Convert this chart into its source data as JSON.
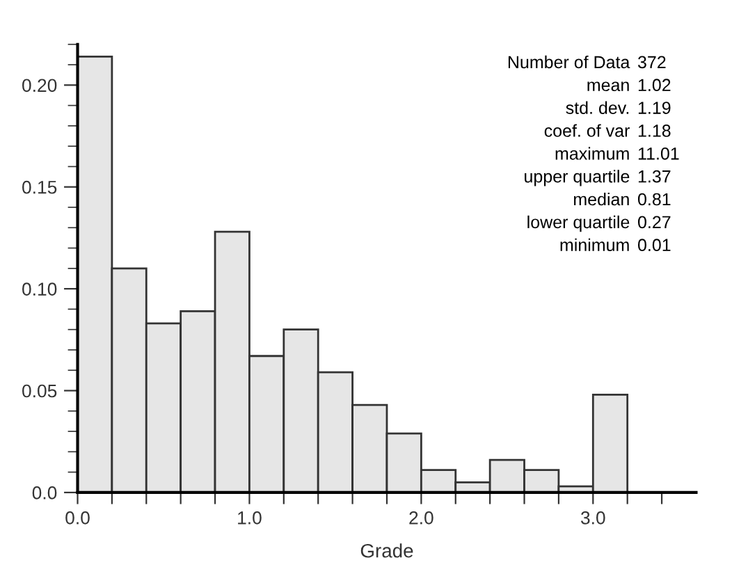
{
  "chart_data": {
    "type": "histogram",
    "xlabel": "Grade",
    "bins": [
      0.0,
      0.2,
      0.4,
      0.6,
      0.8,
      1.0,
      1.2,
      1.4,
      1.6,
      1.8,
      2.0,
      2.2,
      2.4,
      2.6,
      2.8,
      3.0,
      3.2
    ],
    "values": [
      0.214,
      0.11,
      0.083,
      0.089,
      0.128,
      0.067,
      0.08,
      0.059,
      0.043,
      0.029,
      0.011,
      0.005,
      0.016,
      0.011,
      0.003,
      0.048
    ],
    "color": "#e6e6e6",
    "xlim": [
      0,
      3.6
    ],
    "xticks": [
      {
        "value": 0.0,
        "label": "0.0"
      },
      {
        "value": 0.2,
        "label": null
      },
      {
        "value": 0.4,
        "label": null
      },
      {
        "value": 0.6,
        "label": null
      },
      {
        "value": 0.8,
        "label": null
      },
      {
        "value": 1.0,
        "label": "1.0"
      },
      {
        "value": 1.2,
        "label": null
      },
      {
        "value": 1.4,
        "label": null
      },
      {
        "value": 1.6,
        "label": null
      },
      {
        "value": 1.8,
        "label": null
      },
      {
        "value": 2.0,
        "label": "2.0"
      },
      {
        "value": 2.2,
        "label": null
      },
      {
        "value": 2.4,
        "label": null
      },
      {
        "value": 2.6,
        "label": null
      },
      {
        "value": 2.8,
        "label": null
      },
      {
        "value": 3.0,
        "label": "3.0"
      },
      {
        "value": 3.2,
        "label": null
      },
      {
        "value": 3.4,
        "label": null
      }
    ],
    "ylim": [
      0,
      0.22
    ],
    "yticks": [
      {
        "value": 0.0,
        "label": "0.0"
      },
      {
        "value": 0.05,
        "label": "0.05"
      },
      {
        "value": 0.1,
        "label": "0.10"
      },
      {
        "value": 0.15,
        "label": "0.15"
      },
      {
        "value": 0.2,
        "label": "0.20"
      }
    ],
    "grid": false,
    "annotations": [
      "Number of Data 372",
      "mean 1.02",
      "std. dev. 1.19",
      "coef. of var 1.18",
      "maximum 11.01",
      "upper quartile 1.37",
      "median 0.81",
      "lower quartile 0.27",
      "minimum 0.01"
    ]
  }
}
